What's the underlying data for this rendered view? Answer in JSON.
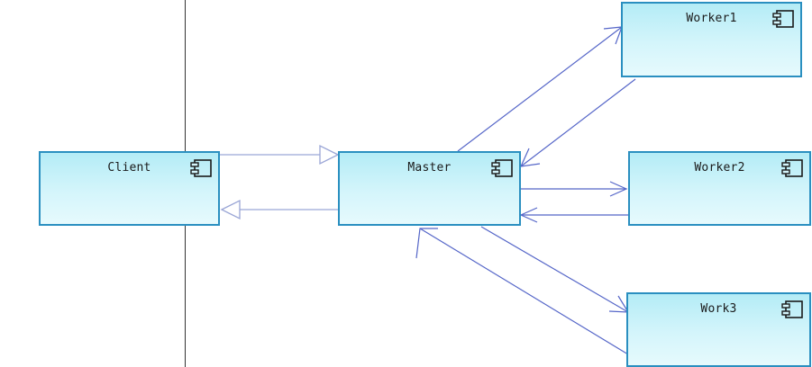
{
  "diagram": {
    "colors": {
      "box_border": "#2a8fc0",
      "box_fill_top": "#b4ecf6",
      "box_fill_bottom": "#e6fafd",
      "arrow_line": "#5566c8",
      "hollow_arrow": "#9aa6d6",
      "separator": "#333333"
    },
    "icon": "uml-component-icon",
    "nodes": {
      "client": {
        "label": "Client"
      },
      "master": {
        "label": "Master"
      },
      "worker1": {
        "label": "Worker1"
      },
      "worker2": {
        "label": "Worker2"
      },
      "work3": {
        "label": "Work3"
      }
    },
    "edges": [
      {
        "from": "client",
        "to": "master",
        "style": "hollow-triangle"
      },
      {
        "from": "master",
        "to": "client",
        "style": "hollow-triangle"
      },
      {
        "from": "master",
        "to": "worker1",
        "style": "open-arrow"
      },
      {
        "from": "worker1",
        "to": "master",
        "style": "open-arrow"
      },
      {
        "from": "master",
        "to": "worker2",
        "style": "open-arrow"
      },
      {
        "from": "worker2",
        "to": "master",
        "style": "open-arrow"
      },
      {
        "from": "master",
        "to": "work3",
        "style": "open-arrow"
      },
      {
        "from": "work3",
        "to": "master",
        "style": "open-arrow"
      }
    ]
  }
}
